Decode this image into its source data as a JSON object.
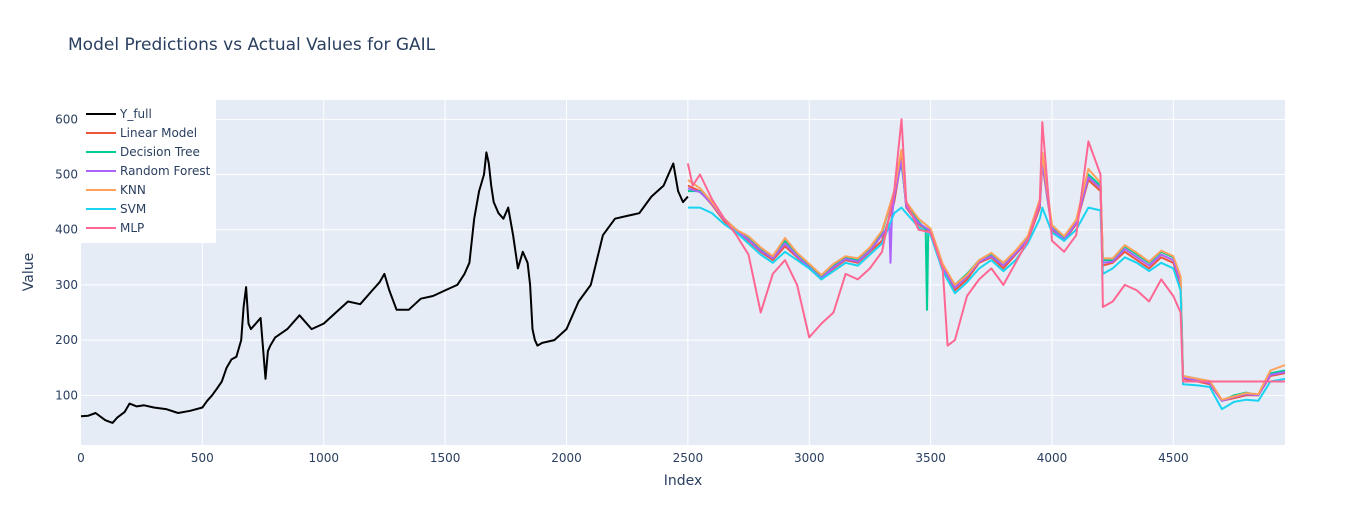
{
  "chart_data": {
    "type": "line",
    "title": "Model Predictions vs Actual Values for GAIL",
    "xlabel": "Index",
    "ylabel": "Value",
    "xlim": [
      0,
      4960
    ],
    "ylim": [
      10,
      635
    ],
    "x_ticks": [
      0,
      500,
      1000,
      1500,
      2000,
      2500,
      3000,
      3500,
      4000,
      4500
    ],
    "y_ticks": [
      100,
      200,
      300,
      400,
      500,
      600
    ],
    "grid": true,
    "legend_position": "top-left",
    "background_color": "#e5ecf6",
    "series": [
      {
        "name": "Y_full",
        "color": "#000000",
        "x": [
          0,
          30,
          60,
          100,
          130,
          150,
          180,
          200,
          230,
          260,
          300,
          350,
          400,
          450,
          500,
          520,
          540,
          560,
          580,
          600,
          620,
          640,
          660,
          670,
          680,
          690,
          700,
          720,
          740,
          760,
          770,
          780,
          800,
          850,
          900,
          950,
          1000,
          1050,
          1100,
          1150,
          1200,
          1230,
          1250,
          1270,
          1300,
          1350,
          1400,
          1450,
          1500,
          1550,
          1580,
          1600,
          1620,
          1640,
          1660,
          1670,
          1680,
          1690,
          1700,
          1720,
          1740,
          1760,
          1780,
          1800,
          1820,
          1840,
          1850,
          1860,
          1870,
          1880,
          1900,
          1950,
          2000,
          2050,
          2100,
          2150,
          2200,
          2250,
          2300,
          2350,
          2400,
          2420,
          2440,
          2460,
          2480,
          2500
        ],
        "values": [
          62,
          63,
          68,
          55,
          50,
          60,
          70,
          85,
          80,
          82,
          78,
          75,
          68,
          72,
          78,
          90,
          100,
          112,
          125,
          150,
          165,
          170,
          200,
          260,
          296,
          230,
          220,
          230,
          240,
          130,
          180,
          190,
          205,
          220,
          245,
          220,
          230,
          250,
          270,
          265,
          290,
          305,
          320,
          290,
          255,
          255,
          275,
          280,
          290,
          300,
          320,
          340,
          420,
          470,
          500,
          540,
          520,
          480,
          450,
          430,
          420,
          440,
          390,
          330,
          360,
          340,
          300,
          220,
          200,
          190,
          195,
          200,
          220,
          270,
          300,
          390,
          420,
          425,
          430,
          460,
          480,
          500,
          520,
          470,
          450,
          460
        ]
      },
      {
        "name": "Linear Model",
        "color": "#ef553b",
        "x": [
          2500,
          2550,
          2600,
          2650,
          2700,
          2750,
          2800,
          2850,
          2900,
          2950,
          3000,
          3050,
          3100,
          3150,
          3200,
          3250,
          3300,
          3350,
          3380,
          3400,
          3450,
          3500,
          3550,
          3600,
          3650,
          3700,
          3750,
          3800,
          3850,
          3900,
          3950,
          3960,
          4000,
          4050,
          4100,
          4150,
          4200,
          4210,
          4250,
          4300,
          4350,
          4400,
          4450,
          4500,
          4530,
          4540,
          4600,
          4650,
          4700,
          4750,
          4800,
          4850,
          4900,
          4960
        ],
        "values": [
          480,
          470,
          445,
          415,
          395,
          380,
          360,
          345,
          370,
          350,
          330,
          310,
          330,
          345,
          340,
          360,
          380,
          450,
          530,
          440,
          410,
          395,
          330,
          290,
          310,
          340,
          350,
          330,
          355,
          380,
          440,
          520,
          400,
          380,
          410,
          490,
          470,
          335,
          340,
          360,
          345,
          330,
          350,
          340,
          300,
          130,
          125,
          120,
          90,
          95,
          100,
          100,
          135,
          140
        ]
      },
      {
        "name": "Decision Tree",
        "color": "#00cc96",
        "x": [
          2500,
          2550,
          2600,
          2650,
          2700,
          2750,
          2800,
          2850,
          2900,
          2950,
          3000,
          3050,
          3100,
          3150,
          3200,
          3250,
          3300,
          3350,
          3380,
          3400,
          3450,
          3480,
          3485,
          3490,
          3500,
          3550,
          3600,
          3650,
          3700,
          3750,
          3800,
          3850,
          3900,
          3950,
          3960,
          4000,
          4050,
          4100,
          4150,
          4200,
          4210,
          4250,
          4300,
          4350,
          4400,
          4450,
          4500,
          4530,
          4540,
          4600,
          4650,
          4700,
          4750,
          4800,
          4850,
          4900,
          4960
        ],
        "values": [
          470,
          470,
          450,
          420,
          400,
          385,
          365,
          350,
          380,
          355,
          335,
          315,
          335,
          350,
          345,
          365,
          395,
          470,
          520,
          445,
          415,
          400,
          255,
          395,
          400,
          335,
          300,
          320,
          345,
          355,
          340,
          360,
          385,
          450,
          530,
          405,
          385,
          415,
          500,
          480,
          345,
          345,
          370,
          355,
          340,
          360,
          350,
          310,
          135,
          130,
          125,
          90,
          100,
          105,
          100,
          140,
          145
        ]
      },
      {
        "name": "Random Forest",
        "color": "#ab63fa",
        "x": [
          2500,
          2550,
          2600,
          2650,
          2700,
          2750,
          2800,
          2850,
          2900,
          2950,
          3000,
          3050,
          3100,
          3150,
          3200,
          3250,
          3300,
          3330,
          3335,
          3340,
          3350,
          3380,
          3400,
          3450,
          3500,
          3550,
          3600,
          3650,
          3700,
          3750,
          3800,
          3850,
          3900,
          3950,
          3960,
          4000,
          4050,
          4100,
          4150,
          4200,
          4210,
          4250,
          4300,
          4350,
          4400,
          4450,
          4500,
          4530,
          4540,
          4600,
          4650,
          4700,
          4750,
          4800,
          4850,
          4900,
          4960
        ],
        "values": [
          475,
          468,
          447,
          418,
          398,
          382,
          362,
          348,
          375,
          352,
          332,
          312,
          332,
          347,
          342,
          362,
          390,
          410,
          340,
          420,
          460,
          525,
          442,
          412,
          398,
          332,
          295,
          315,
          342,
          352,
          335,
          357,
          382,
          445,
          525,
          402,
          382,
          412,
          495,
          475,
          340,
          342,
          365,
          350,
          335,
          355,
          345,
          305,
          132,
          127,
          122,
          90,
          97,
          102,
          100,
          137,
          142
        ]
      },
      {
        "name": "KNN",
        "color": "#ffa15a",
        "x": [
          2500,
          2550,
          2600,
          2650,
          2700,
          2750,
          2800,
          2850,
          2900,
          2950,
          3000,
          3050,
          3100,
          3150,
          3200,
          3250,
          3300,
          3350,
          3380,
          3400,
          3450,
          3500,
          3550,
          3600,
          3650,
          3700,
          3750,
          3800,
          3850,
          3900,
          3950,
          3960,
          4000,
          4050,
          4100,
          4150,
          4200,
          4210,
          4250,
          4300,
          4350,
          4400,
          4450,
          4500,
          4530,
          4540,
          4600,
          4650,
          4700,
          4750,
          4800,
          4850,
          4900,
          4960
        ],
        "values": [
          490,
          475,
          450,
          420,
          400,
          388,
          368,
          352,
          385,
          358,
          338,
          318,
          338,
          352,
          348,
          368,
          398,
          470,
          545,
          450,
          420,
          402,
          338,
          300,
          318,
          345,
          358,
          340,
          362,
          388,
          455,
          540,
          408,
          388,
          418,
          510,
          485,
          348,
          348,
          372,
          358,
          342,
          362,
          352,
          315,
          135,
          130,
          126,
          92,
          98,
          104,
          102,
          145,
          155
        ]
      },
      {
        "name": "SVM",
        "color": "#19d3f3",
        "x": [
          2500,
          2550,
          2600,
          2650,
          2700,
          2750,
          2800,
          2850,
          2900,
          2950,
          3000,
          3050,
          3100,
          3150,
          3200,
          3250,
          3300,
          3350,
          3380,
          3400,
          3450,
          3500,
          3550,
          3600,
          3650,
          3700,
          3750,
          3800,
          3850,
          3900,
          3950,
          3960,
          4000,
          4050,
          4100,
          4150,
          4200,
          4210,
          4250,
          4300,
          4350,
          4400,
          4450,
          4500,
          4530,
          4540,
          4600,
          4650,
          4700,
          4750,
          4800,
          4850,
          4900,
          4960
        ],
        "values": [
          440,
          440,
          430,
          410,
          395,
          375,
          355,
          340,
          360,
          345,
          330,
          310,
          325,
          340,
          335,
          355,
          375,
          430,
          440,
          430,
          405,
          390,
          325,
          285,
          305,
          330,
          345,
          325,
          345,
          375,
          420,
          440,
          395,
          380,
          400,
          440,
          435,
          320,
          330,
          350,
          340,
          325,
          340,
          330,
          290,
          120,
          118,
          115,
          75,
          88,
          92,
          90,
          125,
          130
        ]
      },
      {
        "name": "MLP",
        "color": "#ff6692",
        "x": [
          2500,
          2520,
          2550,
          2600,
          2650,
          2700,
          2750,
          2800,
          2850,
          2900,
          2950,
          3000,
          3050,
          3100,
          3150,
          3200,
          3250,
          3300,
          3350,
          3380,
          3400,
          3450,
          3500,
          3550,
          3570,
          3600,
          3650,
          3700,
          3750,
          3800,
          3850,
          3900,
          3950,
          3960,
          4000,
          4050,
          4100,
          4150,
          4200,
          4210,
          4250,
          4300,
          4350,
          4400,
          4450,
          4500,
          4530,
          4540,
          4960
        ],
        "values": [
          520,
          480,
          500,
          455,
          420,
          390,
          355,
          250,
          320,
          345,
          300,
          205,
          230,
          250,
          320,
          310,
          330,
          360,
          470,
          600,
          450,
          400,
          395,
          330,
          190,
          200,
          280,
          310,
          330,
          300,
          340,
          380,
          450,
          595,
          380,
          360,
          390,
          560,
          500,
          260,
          270,
          300,
          290,
          270,
          310,
          280,
          250,
          125,
          125
        ]
      }
    ]
  }
}
